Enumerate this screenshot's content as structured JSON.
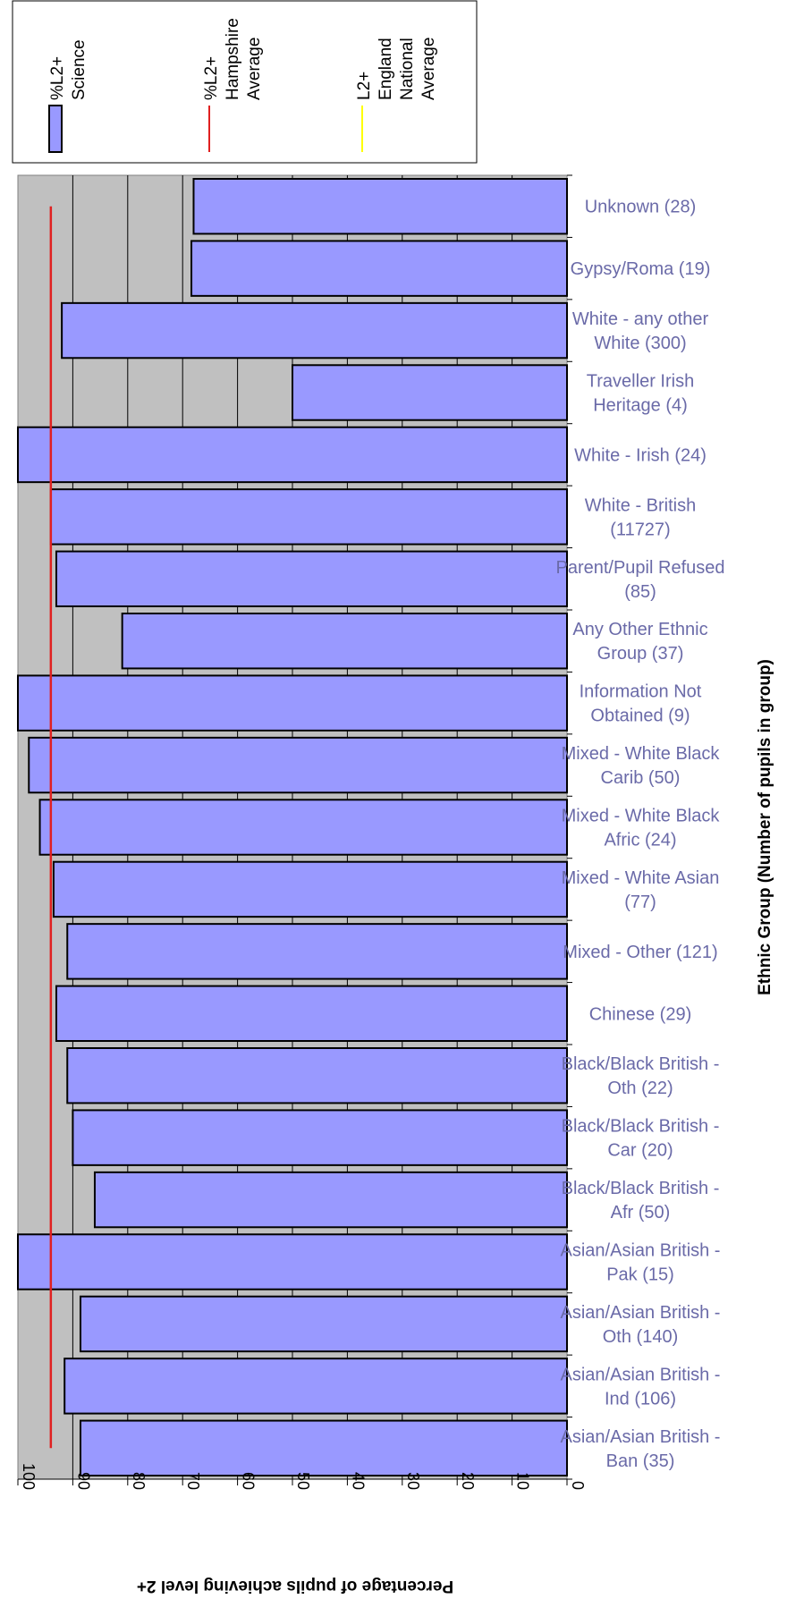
{
  "chart_data": {
    "type": "bar",
    "orientation": "horizontal",
    "xlabel": "Percentage of pupils achieving level 2+",
    "ylabel": "Ethnic Group (Number of pupils in group)",
    "xlim": [
      0,
      100
    ],
    "ticks": [
      100,
      90,
      80,
      70,
      60,
      50,
      40,
      30,
      20,
      10,
      0
    ],
    "grid": true,
    "legend_position": "top",
    "categories": [
      [
        "Unknown (28)"
      ],
      [
        "Gypsy/Roma (19)"
      ],
      [
        "White - any other",
        "White (300)"
      ],
      [
        "Traveller Irish",
        "Heritage (4)"
      ],
      [
        "White - Irish (24)"
      ],
      [
        "White - British",
        "(11727)"
      ],
      [
        "Parent/Pupil Refused",
        "(85)"
      ],
      [
        "Any Other Ethnic",
        "Group (37)"
      ],
      [
        "Information Not",
        "Obtained (9)"
      ],
      [
        "Mixed - White Black",
        "Carib (50)"
      ],
      [
        "Mixed - White Black",
        "Afric (24)"
      ],
      [
        "Mixed - White Asian",
        "(77)"
      ],
      [
        "Mixed - Other (121)"
      ],
      [
        "Chinese (29)"
      ],
      [
        "Black/Black British -",
        "Oth (22)"
      ],
      [
        "Black/Black British -",
        "Car (20)"
      ],
      [
        "Black/Black British -",
        "Afr (50)"
      ],
      [
        "Asian/Asian British -",
        "Pak (15)"
      ],
      [
        "Asian/Asian British -",
        "Oth (140)"
      ],
      [
        "Asian/Asian British -",
        "Ind (106)"
      ],
      [
        "Asian/Asian British -",
        "Ban (35)"
      ]
    ],
    "series": [
      {
        "name": "%L2+ Science",
        "kind": "bar",
        "color": "#9999ff",
        "values": [
          68,
          68.4,
          92,
          50,
          100,
          94,
          93,
          81,
          100,
          98,
          96,
          93.5,
          91,
          93,
          91,
          90,
          86,
          100,
          88.6,
          91.5,
          88.6
        ]
      },
      {
        "name": "%L2+ Hampshire Average",
        "kind": "line",
        "color": "#e02020",
        "value": 94
      },
      {
        "name": "L2+ England National Average",
        "kind": "line",
        "color": "#ffff00",
        "value": null
      }
    ]
  },
  "legend": {
    "items": [
      {
        "lines": [
          "%L2+",
          "Science"
        ],
        "color": "#9999ff",
        "kind": "box"
      },
      {
        "lines": [
          "%L2+",
          "Hampshire",
          "Average"
        ],
        "color": "#e02020",
        "kind": "line"
      },
      {
        "lines": [
          "L2+",
          "England",
          "National",
          "Average"
        ],
        "color": "#ffff00",
        "kind": "line"
      }
    ]
  }
}
